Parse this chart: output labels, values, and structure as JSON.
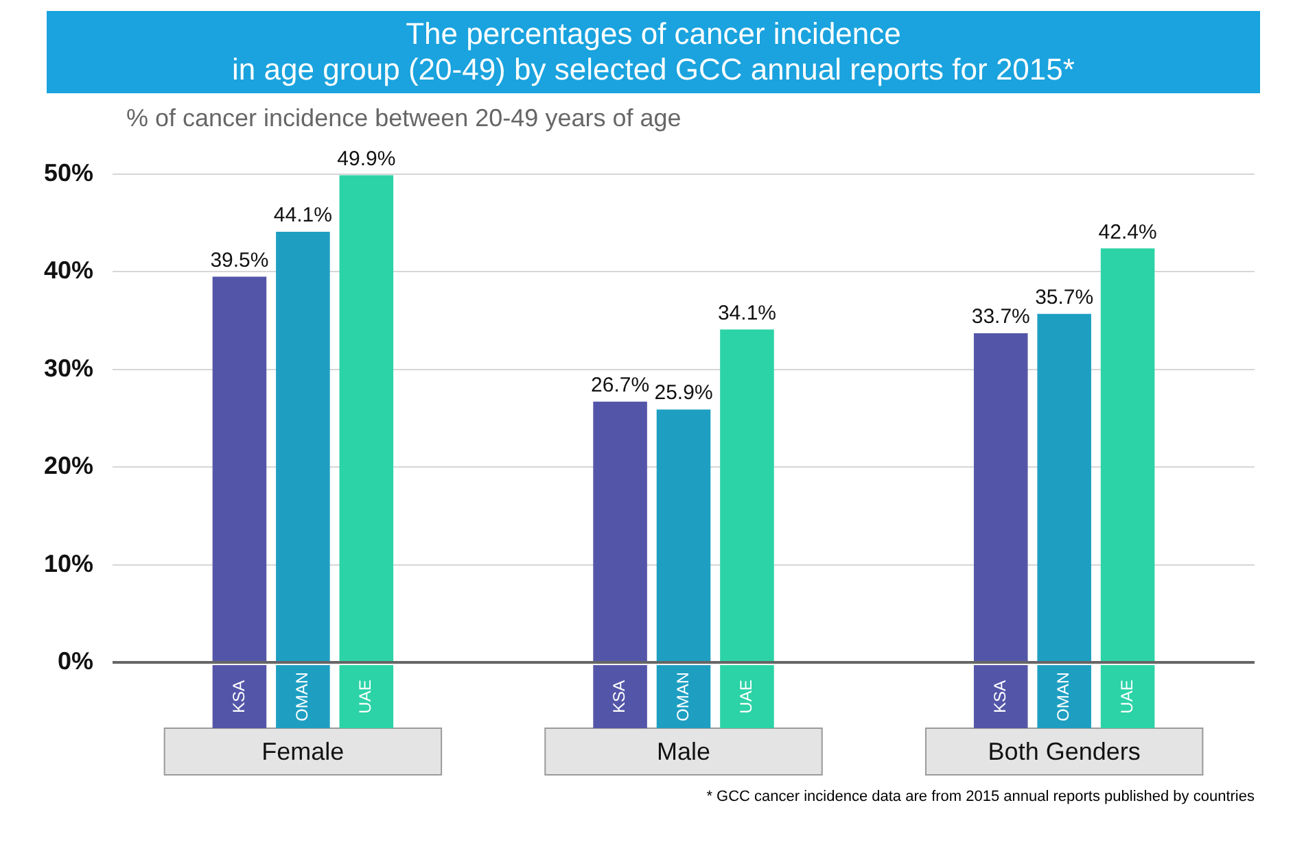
{
  "chart_data": {
    "type": "bar",
    "title": "The percentages of cancer incidence\nin age group (20-49) by selected GCC annual reports for 2015*",
    "ylabel": "% of cancer incidence between 20-49 years of age",
    "categories": [
      "Female",
      "Male",
      "Both Genders"
    ],
    "series": [
      {
        "name": "KSA",
        "color": "#5356a8",
        "values": [
          39.5,
          26.7,
          33.7
        ],
        "value_labels": [
          "39.5%",
          "26.7%",
          "33.7%"
        ]
      },
      {
        "name": "OMAN",
        "color": "#1e9fc2",
        "values": [
          44.1,
          25.9,
          35.7
        ],
        "value_labels": [
          "44.1%",
          "25.9%",
          "35.7%"
        ]
      },
      {
        "name": "UAE",
        "color": "#2cd3a6",
        "values": [
          49.9,
          34.1,
          42.4
        ],
        "value_labels": [
          "49.9%",
          "34.1%",
          "42.4%"
        ]
      }
    ],
    "ylim": [
      0,
      50
    ],
    "yticks": [
      {
        "value": 0,
        "label": "0%"
      },
      {
        "value": 10,
        "label": "10%"
      },
      {
        "value": 20,
        "label": "20%"
      },
      {
        "value": 30,
        "label": "30%"
      },
      {
        "value": 40,
        "label": "40%"
      },
      {
        "value": 50,
        "label": "50%"
      }
    ],
    "grid": "y",
    "legend": false,
    "annotations": [
      "* GCC cancer incidence data are from 2015 annual reports published by countries"
    ]
  }
}
